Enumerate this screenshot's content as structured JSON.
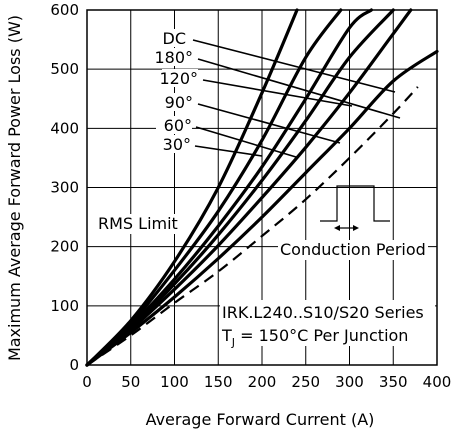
{
  "chart_data": {
    "type": "line",
    "title": "",
    "xlabel": "Average Forward Current (A)",
    "ylabel": "Maximum Average Forward Power Loss (W)",
    "xlim": [
      0,
      400
    ],
    "ylim": [
      0,
      600
    ],
    "x_ticks": [
      "0",
      "50",
      "100",
      "150",
      "200",
      "250",
      "300",
      "350",
      "400"
    ],
    "y_ticks": [
      "0",
      "100",
      "200",
      "300",
      "400",
      "500",
      "600"
    ],
    "grid": true,
    "series": [
      {
        "name": "30°",
        "x": [
          0,
          50,
          100,
          150,
          200,
          240
        ],
        "y": [
          0,
          75,
          175,
          300,
          460,
          600
        ]
      },
      {
        "name": "60°",
        "x": [
          0,
          50,
          100,
          150,
          200,
          250,
          290
        ],
        "y": [
          0,
          70,
          160,
          260,
          380,
          520,
          600
        ]
      },
      {
        "name": "90°",
        "x": [
          0,
          50,
          100,
          150,
          200,
          250,
          300,
          325
        ],
        "y": [
          0,
          66,
          145,
          235,
          335,
          450,
          570,
          600
        ]
      },
      {
        "name": "120°",
        "x": [
          0,
          50,
          100,
          150,
          200,
          250,
          300,
          350
        ],
        "y": [
          0,
          63,
          137,
          220,
          312,
          413,
          520,
          600
        ]
      },
      {
        "name": "180°",
        "x": [
          0,
          50,
          100,
          150,
          200,
          250,
          300,
          350,
          370
        ],
        "y": [
          0,
          60,
          128,
          202,
          283,
          368,
          460,
          560,
          600
        ]
      },
      {
        "name": "DC",
        "x": [
          0,
          50,
          100,
          150,
          200,
          250,
          300,
          350,
          400
        ],
        "y": [
          0,
          55,
          115,
          180,
          250,
          325,
          400,
          480,
          530
        ]
      }
    ],
    "rms_limit": {
      "label": "RMS Limit",
      "x": [
        0,
        50,
        100,
        150,
        200,
        250,
        300,
        350,
        378
      ],
      "y": [
        0,
        50,
        105,
        158,
        218,
        280,
        350,
        425,
        470
      ]
    },
    "legend_labels": [
      "DC",
      "180°",
      "120°",
      "90°",
      "60°",
      "30°"
    ],
    "annotations": {
      "conduction_period": "Conduction Period",
      "series_name": "IRK.L240..S10/S20  Series",
      "tj_main": "T",
      "tj_sub": "J",
      "tj_rest": " = 150°C  Per Junction"
    }
  }
}
